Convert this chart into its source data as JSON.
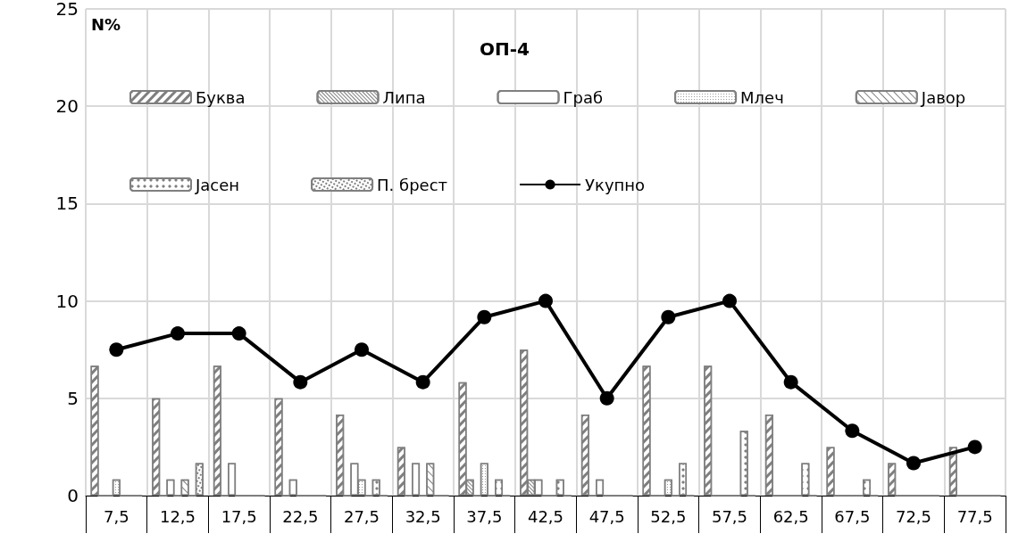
{
  "chart_data": {
    "type": "bar",
    "title": "ОП-4",
    "ylabel": "N%",
    "categories": [
      "7,5",
      "12,5",
      "17,5",
      "22,5",
      "27,5",
      "32,5",
      "37,5",
      "42,5",
      "47,5",
      "52,5",
      "57,5",
      "62,5",
      "67,5",
      "72,5",
      "77,5"
    ],
    "series": [
      {
        "name": "Буква",
        "color": "#7f7f7f",
        "values": [
          6.67,
          5,
          6.67,
          5,
          4.17,
          2.5,
          5.83,
          7.5,
          4.17,
          6.67,
          6.67,
          4.17,
          2.5,
          1.67,
          2.5
        ]
      },
      {
        "name": "Липа",
        "color": "#7f7f7f",
        "values": [
          0,
          0,
          0,
          0,
          0,
          0,
          0.83,
          0.83,
          0,
          0,
          0,
          0,
          0,
          0,
          0
        ]
      },
      {
        "name": "Граб",
        "color": "#7f7f7f",
        "values": [
          0,
          0.83,
          1.67,
          0.83,
          1.67,
          1.67,
          0,
          0.83,
          0.83,
          0,
          0,
          0,
          0,
          0,
          0
        ]
      },
      {
        "name": "Млеч",
        "color": "#7f7f7f",
        "values": [
          0.83,
          0,
          0,
          0,
          0.83,
          0,
          1.67,
          0,
          0,
          0.83,
          0,
          0,
          0,
          0,
          0
        ]
      },
      {
        "name": "Јавор",
        "color": "#7f7f7f",
        "values": [
          0,
          0.83,
          0,
          0,
          0,
          1.67,
          0,
          0,
          0,
          0,
          0,
          0,
          0,
          0,
          0
        ]
      },
      {
        "name": "Јасен",
        "color": "#7f7f7f",
        "values": [
          0,
          0,
          0,
          0,
          0.83,
          0,
          0.83,
          0.83,
          0,
          1.67,
          3.33,
          1.67,
          0.83,
          0,
          0
        ]
      },
      {
        "name": "П. брест",
        "color": "#7f7f7f",
        "values": [
          0,
          1.67,
          0,
          0,
          0,
          0,
          0,
          0,
          0,
          0,
          0,
          0,
          0,
          0,
          0
        ]
      },
      {
        "name": "Укупно",
        "type": "line",
        "color": "#000000",
        "marker": "circle",
        "values": [
          7.5,
          8.33,
          8.33,
          5.83,
          7.5,
          5.83,
          9.17,
          10,
          5,
          9.17,
          10,
          5.83,
          3.33,
          1.67,
          2.5
        ]
      }
    ],
    "ylim": [
      0,
      25
    ],
    "yticks": [
      0,
      5,
      10,
      15,
      20,
      25
    ],
    "grid": true,
    "legend": "top"
  }
}
